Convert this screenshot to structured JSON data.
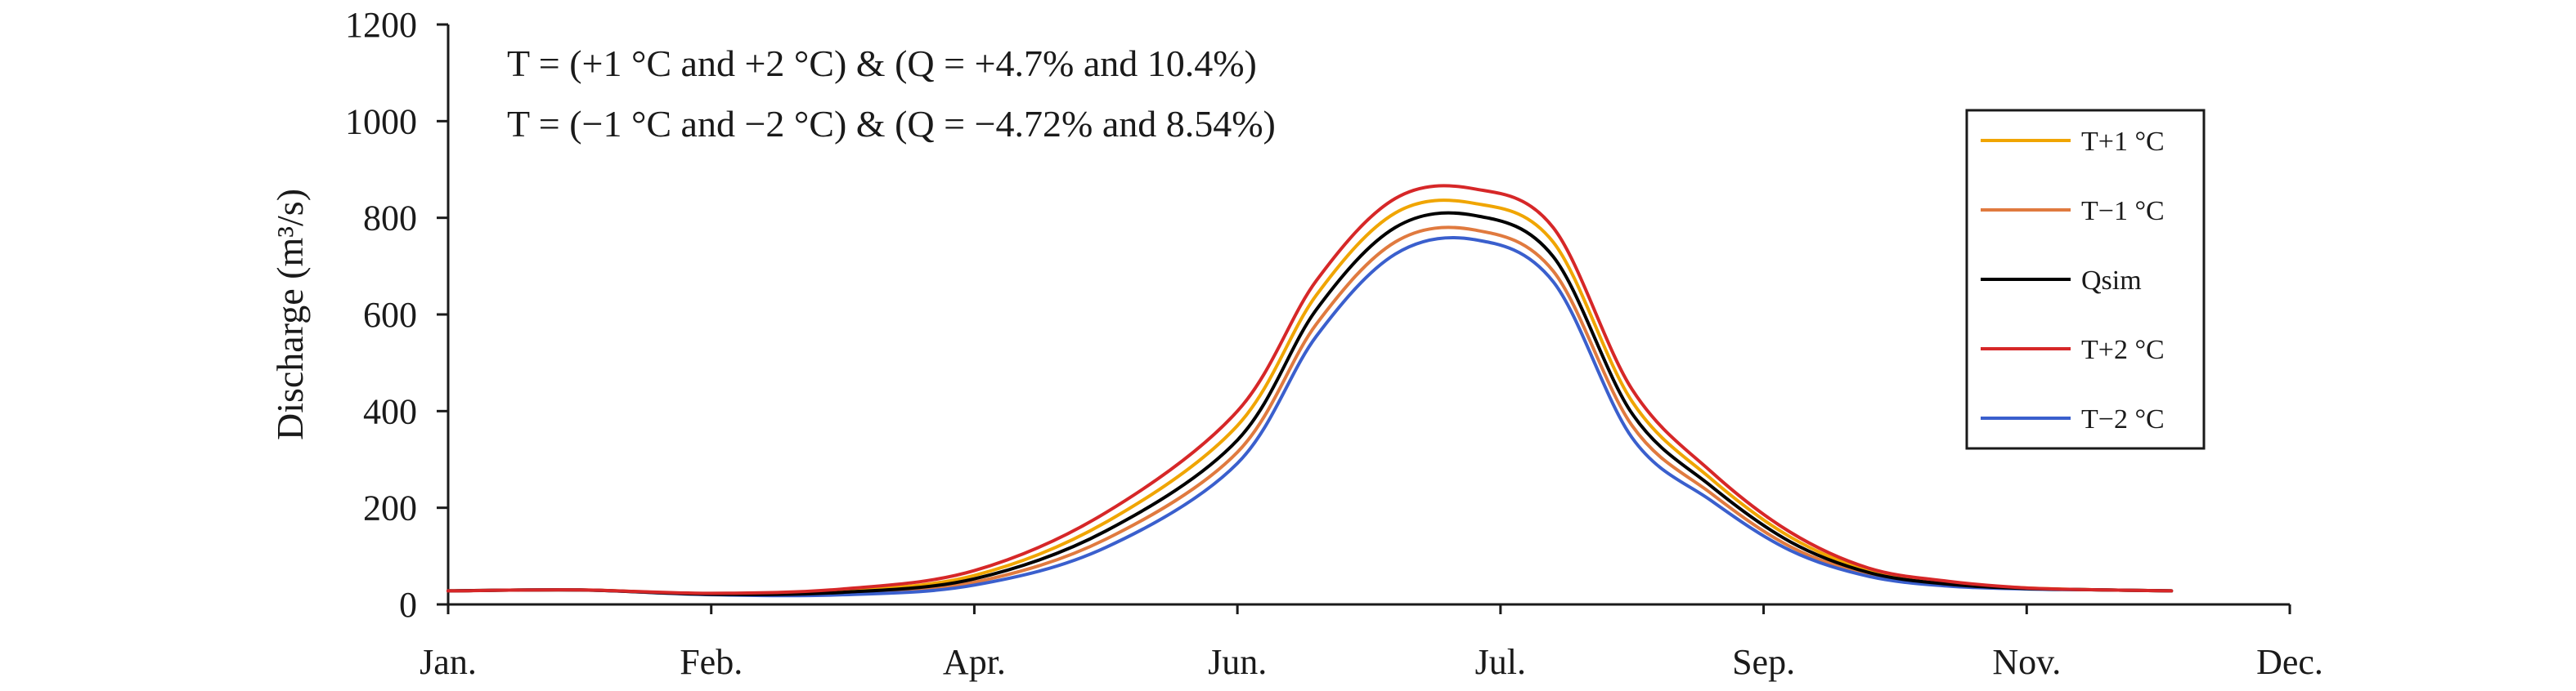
{
  "chart_data": {
    "type": "line",
    "title": "",
    "xlabel": "",
    "ylabel": "Discharge (m³/s)",
    "ylim": [
      0,
      1200
    ],
    "yticks": [
      0,
      200,
      400,
      600,
      800,
      1000,
      1200
    ],
    "xlim": [
      0,
      7
    ],
    "xtick_positions": [
      0,
      1,
      2,
      3,
      4,
      5,
      6,
      7
    ],
    "xtick_labels": [
      "Jan.",
      "Feb.",
      "Apr.",
      "Jun.",
      "Jul.",
      "Sep.",
      "Nov.",
      "Dec."
    ],
    "grid": false,
    "legend_position": "right",
    "annotations": [
      "T = (+1 °C and +2 °C) & (Q = +4.7% and 10.4%)",
      "T = (−1 °C and −2 °C) & (Q = −4.72% and 8.54%)"
    ],
    "x": [
      0,
      0.5,
      1,
      1.5,
      2,
      2.5,
      3,
      3.3,
      3.6,
      3.9,
      4.2,
      4.5,
      4.8,
      5.1,
      5.4,
      5.7,
      6,
      6.3,
      6.55
    ],
    "series": [
      {
        "name": "T+1 °C",
        "color": "#f0a500",
        "values": [
          28,
          30,
          22,
          28,
          60,
          170,
          370,
          640,
          810,
          830,
          750,
          420,
          260,
          140,
          70,
          45,
          34,
          30,
          28
        ]
      },
      {
        "name": "T−1 °C",
        "color": "#e07a3f",
        "values": [
          28,
          30,
          21,
          23,
          46,
          135,
          315,
          580,
          750,
          775,
          690,
          370,
          230,
          120,
          62,
          40,
          33,
          30,
          28
        ]
      },
      {
        "name": "Qsim",
        "color": "#000000",
        "values": [
          28,
          30,
          21,
          25,
          53,
          152,
          340,
          610,
          780,
          805,
          720,
          395,
          245,
          130,
          66,
          42,
          33,
          30,
          28
        ]
      },
      {
        "name": "T+2 °C",
        "color": "#d62728",
        "values": [
          28,
          30,
          23,
          32,
          70,
          190,
          400,
          670,
          840,
          860,
          780,
          445,
          275,
          150,
          75,
          48,
          34,
          30,
          28
        ]
      },
      {
        "name": "T−2 °C",
        "color": "#3a5fcd",
        "values": [
          28,
          30,
          20,
          20,
          40,
          118,
          292,
          555,
          725,
          755,
          668,
          345,
          215,
          112,
          58,
          38,
          32,
          30,
          28
        ]
      }
    ]
  }
}
